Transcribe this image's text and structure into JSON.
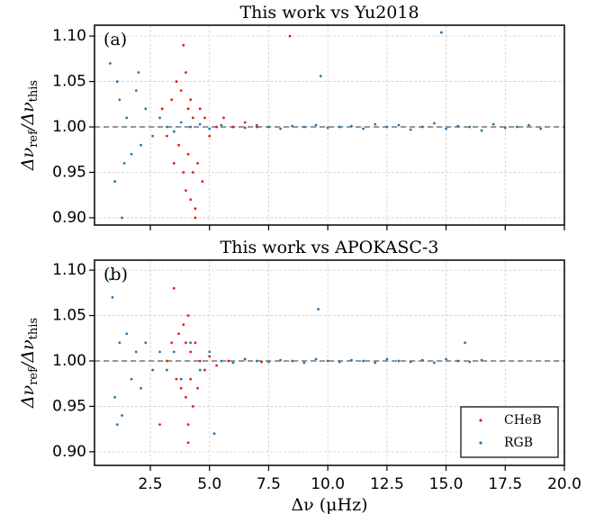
{
  "chart_data": [
    {
      "type": "scatter",
      "title": "This work vs Yu2018",
      "panel_label": "(a)",
      "ylabel": [
        "Δν",
        "ref",
        "/Δν",
        "this"
      ],
      "ylim": [
        0.892,
        1.112
      ],
      "xlim": [
        0.14,
        20.0
      ],
      "yticks": [
        {
          "value": 0.9,
          "label": "0.90"
        },
        {
          "value": 0.95,
          "label": "0.95"
        },
        {
          "value": 1.0,
          "label": "1.00"
        },
        {
          "value": 1.05,
          "label": "1.05"
        },
        {
          "value": 1.1,
          "label": "1.10"
        }
      ],
      "hline": 1.0,
      "grid": true,
      "series": [
        {
          "color": "#1f77b4",
          "x": [
            0.8,
            1.0,
            1.2,
            1.3,
            1.5,
            1.7,
            1.9,
            2.1,
            2.3,
            2.6,
            2.9,
            3.2,
            3.5,
            3.8,
            4.2,
            4.6,
            5.0,
            5.5,
            6.0,
            6.5,
            7.0,
            7.5,
            8.0,
            8.5,
            9.0,
            9.5,
            10.0,
            10.5,
            11.0,
            11.5,
            12.0,
            12.5,
            13.0,
            13.5,
            14.0,
            14.5,
            15.0,
            15.5,
            16.0,
            16.5,
            17.0,
            17.5,
            18.0,
            18.5,
            19.0,
            1.1,
            1.4,
            2.0,
            9.7,
            14.8
          ],
          "values": [
            1.07,
            0.94,
            1.03,
            0.9,
            1.01,
            0.97,
            1.04,
            0.98,
            1.02,
            0.99,
            1.01,
            1.0,
            0.995,
            1.005,
            1.0,
            1.003,
            0.998,
            1.002,
            1.0,
            0.999,
            1.002,
            1.0,
            0.998,
            1.001,
            1.0,
            1.002,
            0.999,
            1.0,
            1.001,
            0.998,
            1.003,
            1.0,
            1.002,
            0.997,
            1.0,
            1.004,
            0.998,
            1.001,
            1.0,
            0.996,
            1.003,
            0.999,
            1.0,
            1.002,
            0.998,
            1.05,
            0.96,
            1.06,
            1.056,
            1.104
          ]
        },
        {
          "color": "#e31a1c",
          "x": [
            3.0,
            3.2,
            3.4,
            3.5,
            3.6,
            3.7,
            3.8,
            3.9,
            4.0,
            4.0,
            4.1,
            4.1,
            4.2,
            4.2,
            4.3,
            4.3,
            4.4,
            4.5,
            4.6,
            4.7,
            4.8,
            5.0,
            5.3,
            5.6,
            6.0,
            6.5,
            7.0,
            8.4,
            3.9,
            4.4
          ],
          "values": [
            1.02,
            0.99,
            1.03,
            0.96,
            1.05,
            0.98,
            1.04,
            0.95,
            1.06,
            0.93,
            1.02,
            0.97,
            0.92,
            1.03,
            0.95,
            1.01,
            0.9,
            0.96,
            1.02,
            0.94,
            1.01,
            0.99,
            1.0,
            1.01,
            1.0,
            1.005,
            1.0,
            1.1,
            1.09,
            0.91
          ]
        }
      ]
    },
    {
      "type": "scatter",
      "title": "This work vs APOKASC-3",
      "panel_label": "(b)",
      "ylabel": [
        "Δν",
        "ref",
        "/Δν",
        "this"
      ],
      "xlabel": "Δν (μHz)",
      "ylim": [
        0.885,
        1.111
      ],
      "xlim": [
        0.14,
        20.0
      ],
      "yticks": [
        {
          "value": 0.9,
          "label": "0.90"
        },
        {
          "value": 0.95,
          "label": "0.95"
        },
        {
          "value": 1.0,
          "label": "1.00"
        },
        {
          "value": 1.05,
          "label": "1.05"
        },
        {
          "value": 1.1,
          "label": "1.10"
        }
      ],
      "xticks": [
        2.5,
        {
          "value": 5,
          "label": "5.0"
        },
        7.5,
        {
          "value": 10,
          "label": "10.0"
        },
        12.5,
        {
          "value": 15,
          "label": "15.0"
        },
        17.5,
        {
          "value": 20,
          "label": "20.0"
        }
      ],
      "hline": 1.0,
      "grid": true,
      "legend": "lower right",
      "series": [
        {
          "name": "CHeB",
          "color": "#e31a1c",
          "x": [
            3.2,
            3.4,
            3.6,
            3.7,
            3.8,
            3.9,
            4.0,
            4.0,
            4.1,
            4.1,
            4.2,
            4.2,
            4.3,
            4.4,
            4.5,
            4.6,
            4.8,
            5.0,
            5.3,
            5.8,
            6.5,
            7.2,
            3.5,
            4.1,
            2.9
          ],
          "values": [
            1.0,
            1.02,
            0.98,
            1.03,
            0.97,
            1.04,
            0.96,
            1.02,
            0.93,
            1.05,
            0.98,
            1.01,
            0.95,
            1.02,
            0.97,
            1.0,
            0.99,
            1.005,
            0.995,
            1.0,
            1.002,
            0.999,
            1.08,
            0.91,
            0.93
          ]
        },
        {
          "name": "RGB",
          "color": "#1f77b4",
          "x": [
            0.8,
            1.0,
            1.2,
            1.3,
            1.5,
            1.7,
            1.9,
            2.1,
            2.3,
            2.6,
            2.9,
            3.2,
            3.5,
            3.8,
            4.2,
            4.6,
            5.0,
            5.5,
            6.0,
            6.5,
            7.0,
            7.5,
            8.0,
            8.5,
            9.0,
            9.5,
            10.0,
            10.5,
            11.0,
            11.5,
            12.0,
            12.5,
            13.0,
            13.5,
            14.0,
            14.5,
            15.0,
            15.5,
            16.0,
            16.5,
            0.9,
            1.1,
            5.2,
            9.6,
            15.8
          ],
          "values": [
            1.09,
            0.96,
            1.02,
            0.94,
            1.03,
            0.98,
            1.01,
            0.97,
            1.02,
            0.99,
            1.01,
            0.99,
            1.01,
            0.98,
            1.02,
            0.99,
            1.01,
            1.0,
            0.998,
            1.002,
            1.0,
            0.999,
            1.001,
            1.0,
            0.998,
            1.002,
            1.0,
            0.999,
            1.001,
            1.0,
            0.998,
            1.002,
            1.0,
            0.999,
            1.001,
            0.998,
            1.002,
            1.0,
            0.999,
            1.001,
            1.07,
            0.93,
            0.92,
            1.057,
            1.02
          ]
        }
      ]
    }
  ]
}
